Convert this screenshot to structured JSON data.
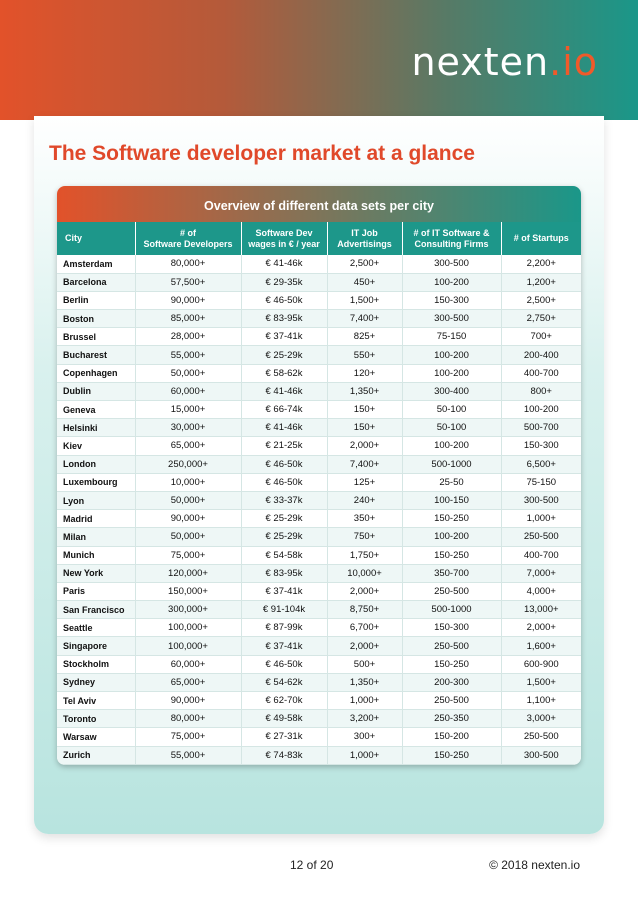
{
  "brand": {
    "logo_main": "nexten",
    "logo_accent": ".io"
  },
  "page": {
    "title": "The Software developer market at a glance"
  },
  "table": {
    "caption": "Overview of different data sets per city",
    "headers": {
      "city": "City",
      "devs_line1": "# of",
      "devs_line2": "Software Developers",
      "wages_line1": "Software Dev",
      "wages_line2": "wages in € / year",
      "jobs_line1": "IT Job",
      "jobs_line2": "Advertisings",
      "firms_line1": "# of IT Software &",
      "firms_line2": "Consulting Firms",
      "startups": "# of Startups"
    },
    "rows": [
      [
        "Amsterdam",
        "80,000+",
        "€ 41-46k",
        "2,500+",
        "300-500",
        "2,200+"
      ],
      [
        "Barcelona",
        "57,500+",
        "€ 29-35k",
        "450+",
        "100-200",
        "1,200+"
      ],
      [
        "Berlin",
        "90,000+",
        "€ 46-50k",
        "1,500+",
        "150-300",
        "2,500+"
      ],
      [
        "Boston",
        "85,000+",
        "€ 83-95k",
        "7,400+",
        "300-500",
        "2,750+"
      ],
      [
        "Brussel",
        "28,000+",
        "€ 37-41k",
        "825+",
        "75-150",
        "700+"
      ],
      [
        "Bucharest",
        "55,000+",
        "€ 25-29k",
        "550+",
        "100-200",
        "200-400"
      ],
      [
        "Copenhagen",
        "50,000+",
        "€ 58-62k",
        "120+",
        "100-200",
        "400-700"
      ],
      [
        "Dublin",
        "60,000+",
        "€ 41-46k",
        "1,350+",
        "300-400",
        "800+"
      ],
      [
        "Geneva",
        "15,000+",
        "€ 66-74k",
        "150+",
        "50-100",
        "100-200"
      ],
      [
        "Helsinki",
        "30,000+",
        "€ 41-46k",
        "150+",
        "50-100",
        "500-700"
      ],
      [
        "Kiev",
        "65,000+",
        "€ 21-25k",
        "2,000+",
        "100-200",
        "150-300"
      ],
      [
        "London",
        "250,000+",
        "€ 46-50k",
        "7,400+",
        "500-1000",
        "6,500+"
      ],
      [
        "Luxembourg",
        "10,000+",
        "€ 46-50k",
        "125+",
        "25-50",
        "75-150"
      ],
      [
        "Lyon",
        "50,000+",
        "€ 33-37k",
        "240+",
        "100-150",
        "300-500"
      ],
      [
        "Madrid",
        "90,000+",
        "€ 25-29k",
        "350+",
        "150-250",
        "1,000+"
      ],
      [
        "Milan",
        "50,000+",
        "€ 25-29k",
        "750+",
        "100-200",
        "250-500"
      ],
      [
        "Munich",
        "75,000+",
        "€ 54-58k",
        "1,750+",
        "150-250",
        "400-700"
      ],
      [
        "New York",
        "120,000+",
        "€ 83-95k",
        "10,000+",
        "350-700",
        "7,000+"
      ],
      [
        "Paris",
        "150,000+",
        "€ 37-41k",
        "2,000+",
        "250-500",
        "4,000+"
      ],
      [
        "San Francisco",
        "300,000+",
        "€ 91-104k",
        "8,750+",
        "500-1000",
        "13,000+"
      ],
      [
        "Seattle",
        "100,000+",
        "€ 87-99k",
        "6,700+",
        "150-300",
        "2,000+"
      ],
      [
        "Singapore",
        "100,000+",
        "€ 37-41k",
        "2,000+",
        "250-500",
        "1,600+"
      ],
      [
        "Stockholm",
        "60,000+",
        "€ 46-50k",
        "500+",
        "150-250",
        "600-900"
      ],
      [
        "Sydney",
        "65,000+",
        "€ 54-62k",
        "1,350+",
        "200-300",
        "1,500+"
      ],
      [
        "Tel Aviv",
        "90,000+",
        "€ 62-70k",
        "1,000+",
        "250-500",
        "1,100+"
      ],
      [
        "Toronto",
        "80,000+",
        "€ 49-58k",
        "3,200+",
        "250-350",
        "3,000+"
      ],
      [
        "Warsaw",
        "75,000+",
        "€ 27-31k",
        "300+",
        "150-200",
        "250-500"
      ],
      [
        "Zurich",
        "55,000+",
        "€ 74-83k",
        "1,000+",
        "150-250",
        "300-500"
      ]
    ]
  },
  "footer": {
    "page": "12 of 20",
    "copyright": "© 2018 nexten.io"
  }
}
